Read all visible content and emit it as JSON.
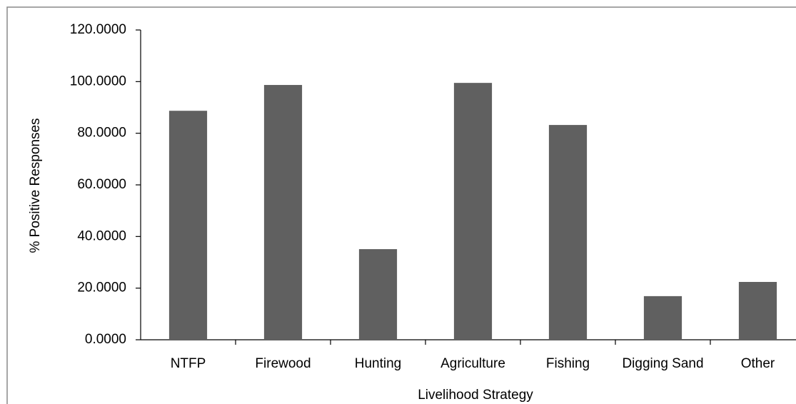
{
  "chart_data": {
    "type": "bar",
    "x_label": "Livelihood Strategy",
    "y_label": "% Positive Responses",
    "categories": [
      "NTFP",
      "Firewood",
      "Hunting",
      "Agriculture",
      "Fishing",
      "Digging Sand",
      "Other"
    ],
    "values": [
      88.7,
      98.7,
      35.1,
      99.5,
      83.2,
      16.9,
      22.4
    ],
    "color": "#606060",
    "ylim": [
      0,
      120
    ],
    "yticks": [
      {
        "value": 0,
        "label": "0.0000"
      },
      {
        "value": 20,
        "label": "20.0000"
      },
      {
        "value": 40,
        "label": "40.0000"
      },
      {
        "value": 60,
        "label": "60.0000"
      },
      {
        "value": 80,
        "label": "80.0000"
      },
      {
        "value": 100,
        "label": "100.0000"
      },
      {
        "value": 120,
        "label": "120.0000"
      }
    ],
    "grid": false
  }
}
